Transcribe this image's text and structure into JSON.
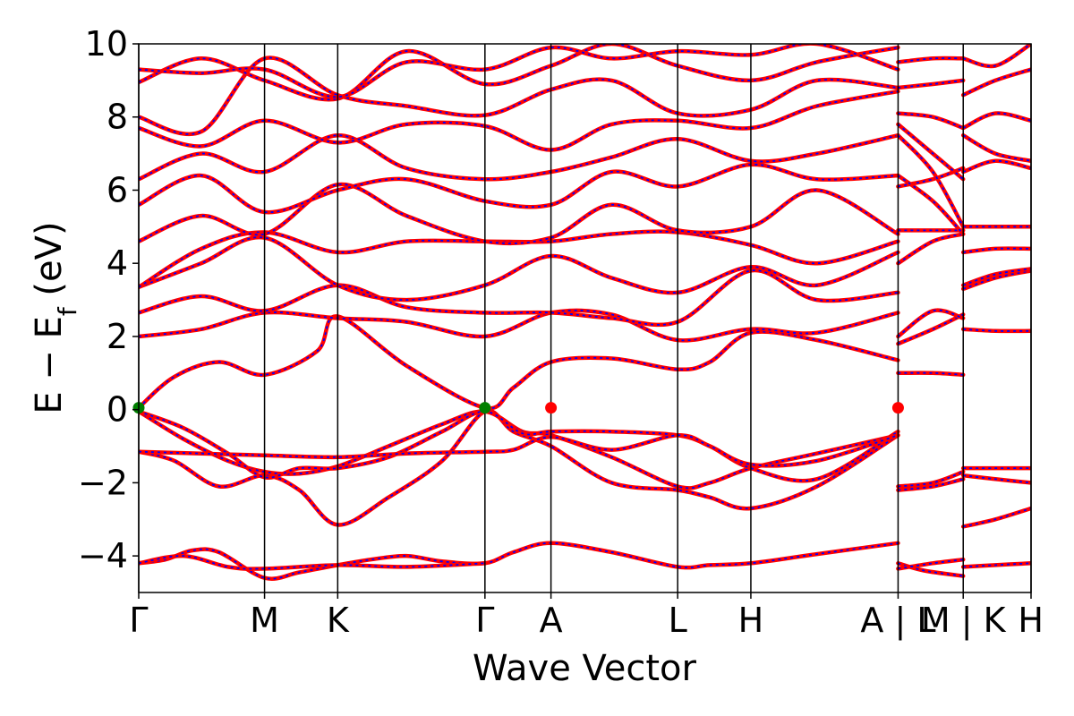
{
  "chart_data": {
    "type": "line",
    "title": "",
    "xlabel": "Wave Vector",
    "ylabel": {
      "main": "E − E",
      "sub": "f",
      "unit": " (eV)"
    },
    "ylim": [
      -5,
      10
    ],
    "yticks": [
      10,
      8,
      6,
      4,
      2,
      0,
      -2,
      -4
    ],
    "ytick_labels": [
      "10",
      "8",
      "6",
      "4",
      "2",
      "0",
      "−2",
      "−4"
    ],
    "xlim": [
      0,
      1
    ],
    "kpoint_labels": [
      {
        "label": "Γ",
        "x": 0.0
      },
      {
        "label": "M",
        "x": 0.141
      },
      {
        "label": "K",
        "x": 0.223
      },
      {
        "label": "Γ",
        "x": 0.388
      },
      {
        "label": "A",
        "x": 0.462
      },
      {
        "label": "L",
        "x": 0.604
      },
      {
        "label": "H",
        "x": 0.686
      },
      {
        "label": "A | L",
        "x": 0.851
      },
      {
        "label": "M | K",
        "x": 0.924
      },
      {
        "label": "H",
        "x": 1.0
      }
    ],
    "separator_lines_x": [
      0.0,
      0.141,
      0.223,
      0.388,
      0.462,
      0.604,
      0.686,
      0.851,
      0.924,
      1.0
    ],
    "grid": false,
    "legend": "none",
    "series_style": {
      "main_color": "#ff0000",
      "dash_color": "#0000ff"
    },
    "highlight_points": [
      {
        "x": 0.0,
        "y": 0.05,
        "color": "#008000"
      },
      {
        "x": 0.388,
        "y": 0.05,
        "color": "#008000"
      },
      {
        "x": 0.462,
        "y": 0.05,
        "color": "#ff0000"
      },
      {
        "x": 0.851,
        "y": 0.05,
        "color": "#ff0000"
      }
    ],
    "bands": [
      [
        [
          0.0,
          -4.2
        ],
        [
          0.03,
          -4.1
        ],
        [
          0.06,
          -3.85
        ],
        [
          0.09,
          -3.9
        ],
        [
          0.141,
          -4.6
        ],
        [
          0.18,
          -4.45
        ],
        [
          0.223,
          -4.25
        ],
        [
          0.26,
          -4.1
        ],
        [
          0.3,
          -4.0
        ],
        [
          0.34,
          -4.15
        ],
        [
          0.388,
          -4.2
        ],
        [
          0.42,
          -3.9
        ],
        [
          0.462,
          -3.65
        ],
        [
          0.53,
          -3.9
        ],
        [
          0.604,
          -4.3
        ],
        [
          0.64,
          -4.25
        ],
        [
          0.686,
          -4.2
        ],
        [
          0.76,
          -3.95
        ],
        [
          0.851,
          -3.65
        ]
      ],
      [
        [
          0.0,
          -4.2
        ],
        [
          0.05,
          -4.0
        ],
        [
          0.1,
          -4.3
        ],
        [
          0.141,
          -4.35
        ],
        [
          0.223,
          -4.25
        ],
        [
          0.3,
          -4.3
        ],
        [
          0.388,
          -4.2
        ]
      ],
      [
        [
          0.0,
          -1.15
        ],
        [
          0.04,
          -1.4
        ],
        [
          0.09,
          -2.1
        ],
        [
          0.141,
          -1.8
        ],
        [
          0.18,
          -2.2
        ],
        [
          0.223,
          -3.15
        ],
        [
          0.28,
          -2.4
        ],
        [
          0.34,
          -1.4
        ],
        [
          0.388,
          -0.05
        ],
        [
          0.42,
          -0.6
        ],
        [
          0.462,
          -1.0
        ],
        [
          0.53,
          -2.0
        ],
        [
          0.604,
          -2.2
        ],
        [
          0.64,
          -2.4
        ],
        [
          0.686,
          -2.7
        ],
        [
          0.76,
          -2.1
        ],
        [
          0.851,
          -0.7
        ]
      ],
      [
        [
          0.0,
          -0.05
        ],
        [
          0.05,
          -0.8
        ],
        [
          0.1,
          -1.4
        ],
        [
          0.141,
          -1.7
        ],
        [
          0.18,
          -1.75
        ],
        [
          0.223,
          -1.55
        ],
        [
          0.28,
          -1.0
        ],
        [
          0.34,
          -0.4
        ],
        [
          0.388,
          -0.05
        ],
        [
          0.43,
          -0.6
        ],
        [
          0.462,
          -0.7
        ],
        [
          0.53,
          -1.3
        ],
        [
          0.604,
          -2.1
        ],
        [
          0.64,
          -2.0
        ],
        [
          0.686,
          -1.6
        ],
        [
          0.76,
          -1.2
        ],
        [
          0.851,
          -0.7
        ]
      ],
      [
        [
          0.0,
          -0.05
        ],
        [
          0.05,
          -0.5
        ],
        [
          0.1,
          -1.2
        ],
        [
          0.141,
          -1.85
        ],
        [
          0.18,
          -1.6
        ],
        [
          0.223,
          -1.6
        ],
        [
          0.28,
          -1.3
        ],
        [
          0.34,
          -0.6
        ],
        [
          0.388,
          -0.05
        ],
        [
          0.43,
          -0.65
        ],
        [
          0.462,
          -0.6
        ],
        [
          0.53,
          -0.6
        ],
        [
          0.604,
          -0.7
        ],
        [
          0.64,
          -1.0
        ],
        [
          0.686,
          -1.6
        ],
        [
          0.76,
          -1.9
        ],
        [
          0.851,
          -0.6
        ]
      ],
      [
        [
          0.0,
          -1.15
        ],
        [
          0.07,
          -1.2
        ],
        [
          0.141,
          -1.25
        ],
        [
          0.223,
          -1.3
        ],
        [
          0.3,
          -1.2
        ],
        [
          0.388,
          -1.15
        ],
        [
          0.42,
          -1.1
        ],
        [
          0.462,
          -0.75
        ],
        [
          0.53,
          -1.1
        ],
        [
          0.604,
          -0.7
        ],
        [
          0.64,
          -1.0
        ],
        [
          0.686,
          -1.5
        ],
        [
          0.76,
          -1.4
        ],
        [
          0.851,
          -0.7
        ]
      ],
      [
        [
          0.0,
          0.05
        ],
        [
          0.04,
          0.9
        ],
        [
          0.09,
          1.3
        ],
        [
          0.141,
          0.95
        ],
        [
          0.2,
          1.6
        ],
        [
          0.223,
          2.55
        ],
        [
          0.3,
          1.2
        ],
        [
          0.388,
          0.05
        ],
        [
          0.42,
          0.6
        ],
        [
          0.462,
          1.3
        ],
        [
          0.53,
          1.4
        ],
        [
          0.604,
          1.1
        ],
        [
          0.64,
          1.3
        ],
        [
          0.686,
          2.1
        ],
        [
          0.76,
          1.9
        ],
        [
          0.851,
          1.35
        ]
      ],
      [
        [
          0.0,
          2.0
        ],
        [
          0.07,
          2.2
        ],
        [
          0.141,
          2.65
        ],
        [
          0.223,
          2.5
        ],
        [
          0.3,
          2.4
        ],
        [
          0.388,
          2.0
        ],
        [
          0.462,
          2.65
        ],
        [
          0.53,
          2.6
        ],
        [
          0.604,
          1.9
        ],
        [
          0.686,
          2.2
        ],
        [
          0.76,
          2.1
        ],
        [
          0.851,
          2.65
        ]
      ],
      [
        [
          0.0,
          2.65
        ],
        [
          0.07,
          3.1
        ],
        [
          0.141,
          2.7
        ],
        [
          0.223,
          3.4
        ],
        [
          0.3,
          2.8
        ],
        [
          0.388,
          2.65
        ],
        [
          0.462,
          2.65
        ],
        [
          0.53,
          2.5
        ],
        [
          0.604,
          2.4
        ],
        [
          0.686,
          3.8
        ],
        [
          0.76,
          3.0
        ],
        [
          0.851,
          3.2
        ]
      ],
      [
        [
          0.0,
          3.35
        ],
        [
          0.07,
          4.0
        ],
        [
          0.141,
          4.7
        ],
        [
          0.223,
          3.4
        ],
        [
          0.3,
          3.0
        ],
        [
          0.388,
          3.4
        ],
        [
          0.462,
          4.2
        ],
        [
          0.53,
          3.6
        ],
        [
          0.604,
          3.2
        ],
        [
          0.686,
          3.9
        ],
        [
          0.76,
          3.4
        ],
        [
          0.851,
          4.3
        ]
      ],
      [
        [
          0.0,
          3.35
        ],
        [
          0.07,
          4.4
        ],
        [
          0.141,
          4.85
        ],
        [
          0.223,
          4.3
        ],
        [
          0.3,
          4.6
        ],
        [
          0.388,
          4.6
        ],
        [
          0.462,
          4.6
        ],
        [
          0.53,
          4.8
        ],
        [
          0.604,
          4.85
        ],
        [
          0.686,
          4.5
        ],
        [
          0.76,
          4.0
        ],
        [
          0.851,
          4.6
        ]
      ],
      [
        [
          0.0,
          4.6
        ],
        [
          0.07,
          5.3
        ],
        [
          0.141,
          4.8
        ],
        [
          0.223,
          6.15
        ],
        [
          0.3,
          5.3
        ],
        [
          0.388,
          4.6
        ],
        [
          0.462,
          4.7
        ],
        [
          0.53,
          5.6
        ],
        [
          0.604,
          4.9
        ],
        [
          0.686,
          5.0
        ],
        [
          0.76,
          6.0
        ],
        [
          0.851,
          4.8
        ]
      ],
      [
        [
          0.0,
          5.6
        ],
        [
          0.07,
          6.4
        ],
        [
          0.141,
          5.4
        ],
        [
          0.223,
          6.0
        ],
        [
          0.3,
          6.3
        ],
        [
          0.388,
          5.7
        ],
        [
          0.462,
          5.6
        ],
        [
          0.53,
          6.5
        ],
        [
          0.604,
          6.1
        ],
        [
          0.686,
          6.7
        ],
        [
          0.76,
          6.3
        ],
        [
          0.851,
          6.4
        ]
      ],
      [
        [
          0.0,
          6.3
        ],
        [
          0.07,
          7.0
        ],
        [
          0.141,
          6.5
        ],
        [
          0.223,
          7.5
        ],
        [
          0.3,
          6.6
        ],
        [
          0.388,
          6.3
        ],
        [
          0.462,
          6.5
        ],
        [
          0.53,
          6.9
        ],
        [
          0.604,
          7.4
        ],
        [
          0.686,
          6.8
        ],
        [
          0.76,
          7.0
        ],
        [
          0.851,
          7.5
        ]
      ],
      [
        [
          0.0,
          7.7
        ],
        [
          0.07,
          7.2
        ],
        [
          0.141,
          7.9
        ],
        [
          0.223,
          7.3
        ],
        [
          0.3,
          7.8
        ],
        [
          0.388,
          7.75
        ],
        [
          0.462,
          7.1
        ],
        [
          0.53,
          7.8
        ],
        [
          0.604,
          7.9
        ],
        [
          0.686,
          7.7
        ],
        [
          0.76,
          8.3
        ],
        [
          0.851,
          8.7
        ]
      ],
      [
        [
          0.0,
          8.0
        ],
        [
          0.07,
          7.6
        ],
        [
          0.141,
          9.6
        ],
        [
          0.223,
          8.6
        ],
        [
          0.3,
          8.3
        ],
        [
          0.388,
          8.05
        ],
        [
          0.462,
          8.75
        ],
        [
          0.53,
          9.0
        ],
        [
          0.604,
          8.1
        ],
        [
          0.686,
          8.2
        ],
        [
          0.76,
          9.0
        ],
        [
          0.851,
          8.8
        ]
      ],
      [
        [
          0.0,
          8.95
        ],
        [
          0.07,
          9.6
        ],
        [
          0.141,
          9.0
        ],
        [
          0.223,
          8.5
        ],
        [
          0.3,
          9.8
        ],
        [
          0.388,
          8.9
        ],
        [
          0.462,
          9.4
        ],
        [
          0.53,
          10.0
        ],
        [
          0.604,
          9.4
        ],
        [
          0.686,
          9.0
        ],
        [
          0.76,
          9.5
        ],
        [
          0.851,
          9.9
        ]
      ],
      [
        [
          0.0,
          9.3
        ],
        [
          0.07,
          9.2
        ],
        [
          0.141,
          9.3
        ],
        [
          0.223,
          8.55
        ],
        [
          0.3,
          9.5
        ],
        [
          0.388,
          9.3
        ],
        [
          0.462,
          9.9
        ],
        [
          0.53,
          9.6
        ],
        [
          0.604,
          9.8
        ],
        [
          0.686,
          9.7
        ],
        [
          0.76,
          10.0
        ],
        [
          0.851,
          9.3
        ]
      ],
      [
        [
          0.851,
          -4.2
        ],
        [
          0.88,
          -4.4
        ],
        [
          0.924,
          -4.55
        ]
      ],
      [
        [
          0.851,
          -4.35
        ],
        [
          0.89,
          -4.2
        ],
        [
          0.924,
          -4.1
        ]
      ],
      [
        [
          0.851,
          -2.1
        ],
        [
          0.89,
          -2.0
        ],
        [
          0.924,
          -1.7
        ]
      ],
      [
        [
          0.851,
          -2.2
        ],
        [
          0.89,
          -2.1
        ],
        [
          0.924,
          -1.9
        ]
      ],
      [
        [
          0.851,
          1.0
        ],
        [
          0.89,
          1.0
        ],
        [
          0.924,
          0.95
        ]
      ],
      [
        [
          0.851,
          1.8
        ],
        [
          0.89,
          2.2
        ],
        [
          0.924,
          2.6
        ]
      ],
      [
        [
          0.851,
          2.0
        ],
        [
          0.89,
          2.7
        ],
        [
          0.924,
          2.5
        ]
      ],
      [
        [
          0.851,
          4.9
        ],
        [
          0.89,
          4.9
        ],
        [
          0.924,
          4.9
        ]
      ],
      [
        [
          0.851,
          4.0
        ],
        [
          0.89,
          4.6
        ],
        [
          0.924,
          4.8
        ]
      ],
      [
        [
          0.851,
          6.1
        ],
        [
          0.89,
          6.3
        ],
        [
          0.924,
          6.6
        ]
      ],
      [
        [
          0.851,
          6.4
        ],
        [
          0.89,
          5.7
        ],
        [
          0.924,
          4.8
        ]
      ],
      [
        [
          0.851,
          7.5
        ],
        [
          0.89,
          6.5
        ],
        [
          0.924,
          5.0
        ]
      ],
      [
        [
          0.851,
          7.8
        ],
        [
          0.89,
          7.0
        ],
        [
          0.924,
          6.3
        ]
      ],
      [
        [
          0.851,
          8.1
        ],
        [
          0.89,
          8.0
        ],
        [
          0.924,
          7.7
        ]
      ],
      [
        [
          0.851,
          8.8
        ],
        [
          0.89,
          8.9
        ],
        [
          0.924,
          9.0
        ]
      ],
      [
        [
          0.851,
          9.5
        ],
        [
          0.89,
          9.6
        ],
        [
          0.924,
          9.6
        ]
      ],
      [
        [
          0.924,
          -4.3
        ],
        [
          0.96,
          -4.25
        ],
        [
          1.0,
          -4.2
        ]
      ],
      [
        [
          0.924,
          -3.2
        ],
        [
          0.96,
          -3.0
        ],
        [
          1.0,
          -2.7
        ]
      ],
      [
        [
          0.924,
          -1.6
        ],
        [
          0.96,
          -1.6
        ],
        [
          1.0,
          -1.6
        ]
      ],
      [
        [
          0.924,
          -1.8
        ],
        [
          0.96,
          -1.9
        ],
        [
          1.0,
          -2.0
        ]
      ],
      [
        [
          0.924,
          2.2
        ],
        [
          0.96,
          2.15
        ],
        [
          1.0,
          2.15
        ]
      ],
      [
        [
          0.924,
          3.3
        ],
        [
          0.96,
          3.6
        ],
        [
          1.0,
          3.8
        ]
      ],
      [
        [
          0.924,
          3.4
        ],
        [
          0.96,
          3.7
        ],
        [
          1.0,
          3.85
        ]
      ],
      [
        [
          0.924,
          4.3
        ],
        [
          0.96,
          4.4
        ],
        [
          1.0,
          4.4
        ]
      ],
      [
        [
          0.924,
          5.0
        ],
        [
          0.96,
          5.0
        ],
        [
          1.0,
          5.0
        ]
      ],
      [
        [
          0.924,
          6.5
        ],
        [
          0.96,
          6.8
        ],
        [
          1.0,
          6.6
        ]
      ],
      [
        [
          0.924,
          7.5
        ],
        [
          0.96,
          7.0
        ],
        [
          1.0,
          6.8
        ]
      ],
      [
        [
          0.924,
          7.7
        ],
        [
          0.96,
          8.1
        ],
        [
          1.0,
          7.9
        ]
      ],
      [
        [
          0.924,
          8.6
        ],
        [
          0.96,
          9.0
        ],
        [
          1.0,
          9.3
        ]
      ],
      [
        [
          0.924,
          9.6
        ],
        [
          0.96,
          9.4
        ],
        [
          1.0,
          10.0
        ]
      ]
    ]
  }
}
